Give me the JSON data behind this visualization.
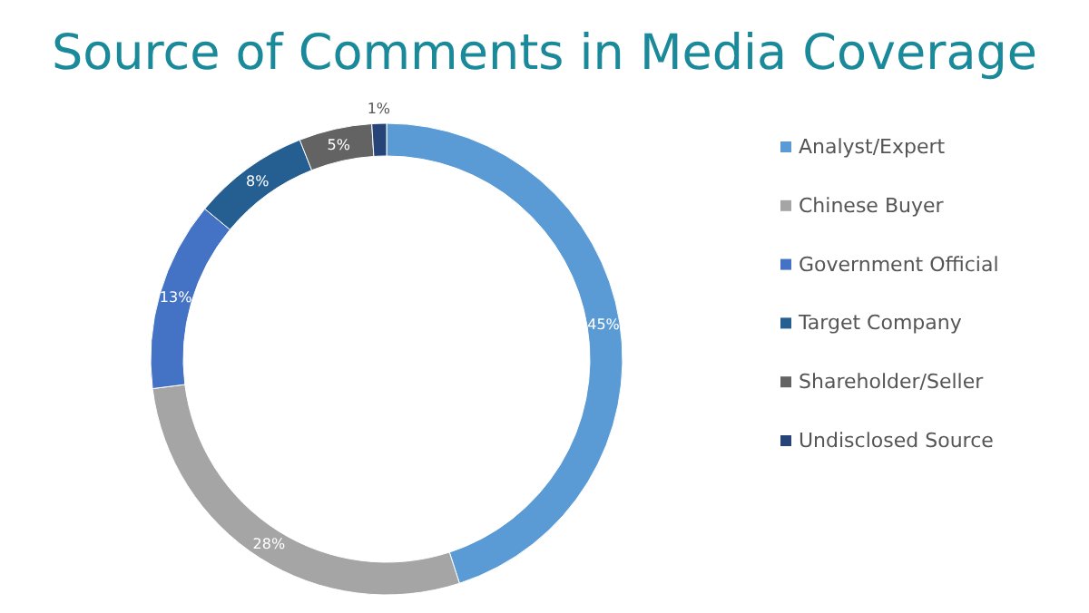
{
  "chart_data": {
    "type": "donut",
    "title": "Source of Comments in Media Coverage",
    "categories": [
      "Analyst/Expert",
      "Chinese Buyer",
      "Government Official",
      "Target Company",
      "Shareholder/Seller",
      "Undisclosed Source"
    ],
    "values": [
      45,
      28,
      13,
      8,
      5,
      1
    ],
    "colors": [
      "#5b9bd5",
      "#a5a5a5",
      "#4472c4",
      "#255e91",
      "#636363",
      "#264478"
    ],
    "value_labels": [
      "45%",
      "28%",
      "13%",
      "8%",
      "5%",
      "1%"
    ],
    "legend": "right"
  }
}
